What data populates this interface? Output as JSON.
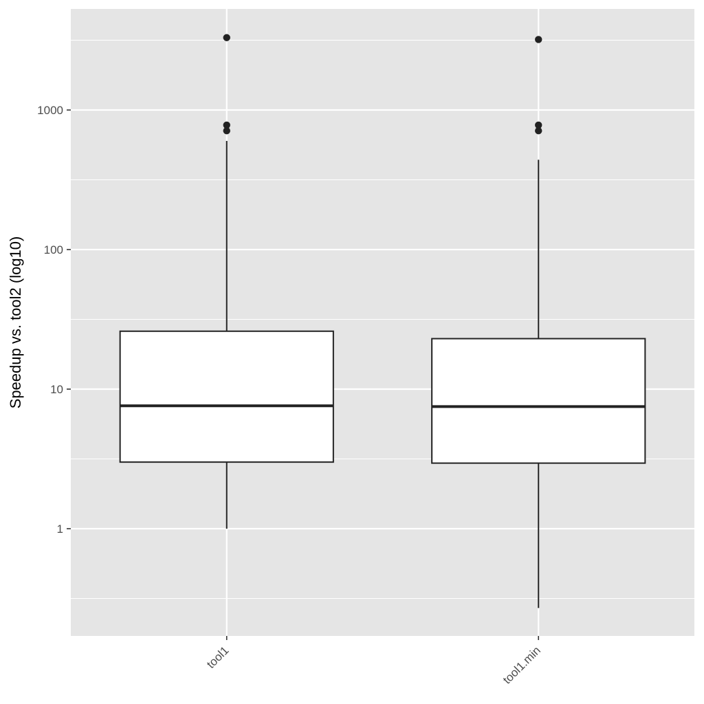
{
  "chart_data": {
    "type": "boxplot",
    "title": "",
    "xlabel": "",
    "ylabel": "Speedup vs. tool2 (log10)",
    "y_scale": "log10",
    "ylim": [
      0.17,
      5000
    ],
    "yticks": [
      1,
      10,
      100,
      1000
    ],
    "ytick_labels": [
      "1",
      "10",
      "100",
      "1000"
    ],
    "grid": true,
    "panel_background": "#e5e5e5",
    "grid_color": "#ffffff",
    "box_fill": "#ffffff",
    "line_color": "#222222",
    "categories": [
      "tool1",
      "tool1.min"
    ],
    "boxes": [
      {
        "category": "tool1",
        "whisker_low": 1.0,
        "q1": 3.0,
        "median": 7.6,
        "q3": 26,
        "whisker_high": 600,
        "outliers": [
          3300,
          780,
          710
        ]
      },
      {
        "category": "tool1.min",
        "whisker_low": 0.27,
        "q1": 2.95,
        "median": 7.5,
        "q3": 23,
        "whisker_high": 440,
        "outliers": [
          3200,
          780,
          710
        ]
      }
    ]
  }
}
